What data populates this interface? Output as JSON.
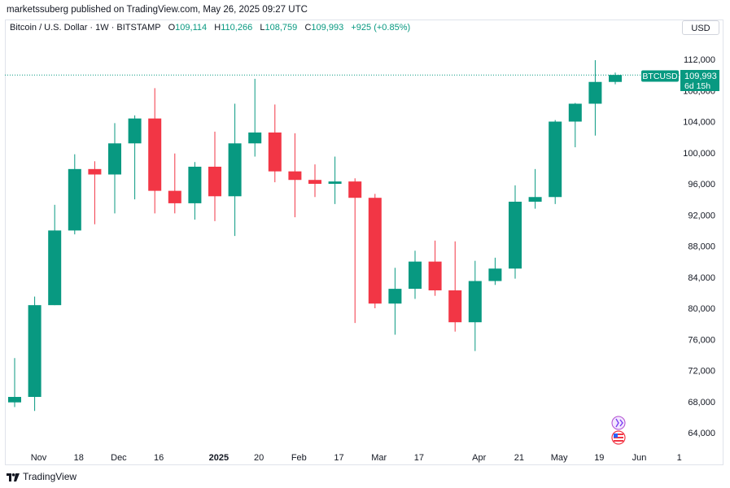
{
  "header": {
    "published_text": "marketssuberg published on TradingView.com, May 26, 2025 09:27 UTC"
  },
  "legend": {
    "symbol": "Bitcoin / U.S. Dollar · 1W · BITSTAMP",
    "o_label": "O",
    "o_value": "109,114",
    "h_label": "H",
    "h_value": "110,266",
    "l_label": "L",
    "l_value": "108,759",
    "c_label": "C",
    "c_value": "109,993",
    "change": "+925 (+0.85%)"
  },
  "currency_button": "USD",
  "price_badge": {
    "symbol": "BTCUSD",
    "price": "109,993",
    "countdown": "6d 15h",
    "value": 109993
  },
  "colors": {
    "up": "#089981",
    "down": "#f23645",
    "text": "#131722",
    "axis_text": "#131722"
  },
  "footer_logo": "TradingView",
  "chart_data": {
    "type": "candlestick",
    "ylim": [
      61000,
      116000
    ],
    "y_ticks": [
      64000,
      68000,
      72000,
      76000,
      80000,
      84000,
      88000,
      92000,
      96000,
      100000,
      104000,
      108000,
      112000
    ],
    "y_tick_labels": [
      "64,000",
      "68,000",
      "72,000",
      "76,000",
      "80,000",
      "84,000",
      "88,000",
      "92,000",
      "96,000",
      "100,000",
      "104,000",
      "108,000",
      "112,000"
    ],
    "x_ticks": [
      {
        "label": "Nov",
        "index": 1.2,
        "bold": false
      },
      {
        "label": "18",
        "index": 3.2,
        "bold": false
      },
      {
        "label": "Dec",
        "index": 5.2,
        "bold": false
      },
      {
        "label": "16",
        "index": 7.2,
        "bold": false
      },
      {
        "label": "2025",
        "index": 10.2,
        "bold": true
      },
      {
        "label": "20",
        "index": 12.2,
        "bold": false
      },
      {
        "label": "Feb",
        "index": 14.2,
        "bold": false
      },
      {
        "label": "17",
        "index": 16.2,
        "bold": false
      },
      {
        "label": "Mar",
        "index": 18.2,
        "bold": false
      },
      {
        "label": "17",
        "index": 20.2,
        "bold": false
      },
      {
        "label": "Apr",
        "index": 23.2,
        "bold": false
      },
      {
        "label": "21",
        "index": 25.2,
        "bold": false
      },
      {
        "label": "May",
        "index": 27.2,
        "bold": false
      },
      {
        "label": "19",
        "index": 29.2,
        "bold": false
      },
      {
        "label": "Jun",
        "index": 31.2,
        "bold": false
      },
      {
        "label": "1",
        "index": 33.2,
        "bold": false
      }
    ],
    "candles": [
      {
        "o": 67900,
        "h": 73600,
        "l": 67300,
        "c": 68600
      },
      {
        "o": 68600,
        "h": 81500,
        "l": 66800,
        "c": 80400
      },
      {
        "o": 80400,
        "h": 93300,
        "l": 80400,
        "c": 90000
      },
      {
        "o": 90000,
        "h": 99800,
        "l": 89500,
        "c": 97900
      },
      {
        "o": 97900,
        "h": 98900,
        "l": 90800,
        "c": 97200
      },
      {
        "o": 97200,
        "h": 103800,
        "l": 92200,
        "c": 101200
      },
      {
        "o": 101200,
        "h": 104800,
        "l": 94000,
        "c": 104400
      },
      {
        "o": 104400,
        "h": 108300,
        "l": 92200,
        "c": 95100
      },
      {
        "o": 95100,
        "h": 99900,
        "l": 92200,
        "c": 93500
      },
      {
        "o": 93500,
        "h": 98800,
        "l": 91400,
        "c": 98200
      },
      {
        "o": 98200,
        "h": 102700,
        "l": 91200,
        "c": 94400
      },
      {
        "o": 94400,
        "h": 106300,
        "l": 89300,
        "c": 101200
      },
      {
        "o": 101200,
        "h": 109500,
        "l": 99500,
        "c": 102600
      },
      {
        "o": 102600,
        "h": 106200,
        "l": 96200,
        "c": 97600
      },
      {
        "o": 97600,
        "h": 102500,
        "l": 91700,
        "c": 96500
      },
      {
        "o": 96500,
        "h": 98500,
        "l": 94300,
        "c": 96000
      },
      {
        "o": 96000,
        "h": 99500,
        "l": 93400,
        "c": 96300
      },
      {
        "o": 96300,
        "h": 96700,
        "l": 78100,
        "c": 94200
      },
      {
        "o": 94200,
        "h": 94700,
        "l": 80000,
        "c": 80600
      },
      {
        "o": 80600,
        "h": 85200,
        "l": 76600,
        "c": 82500
      },
      {
        "o": 82500,
        "h": 87400,
        "l": 81200,
        "c": 86000
      },
      {
        "o": 86000,
        "h": 88700,
        "l": 81600,
        "c": 82300
      },
      {
        "o": 82300,
        "h": 88600,
        "l": 77000,
        "c": 78200
      },
      {
        "o": 78200,
        "h": 86100,
        "l": 74500,
        "c": 83500
      },
      {
        "o": 83500,
        "h": 86500,
        "l": 83000,
        "c": 85100
      },
      {
        "o": 85100,
        "h": 95800,
        "l": 83800,
        "c": 93700
      },
      {
        "o": 93700,
        "h": 97900,
        "l": 92800,
        "c": 94300
      },
      {
        "o": 94300,
        "h": 104200,
        "l": 93400,
        "c": 104000
      },
      {
        "o": 104000,
        "h": 106400,
        "l": 100700,
        "c": 106300
      },
      {
        "o": 106300,
        "h": 111900,
        "l": 102200,
        "c": 109100
      },
      {
        "o": 109100,
        "h": 110300,
        "l": 108800,
        "c": 110000
      }
    ]
  }
}
